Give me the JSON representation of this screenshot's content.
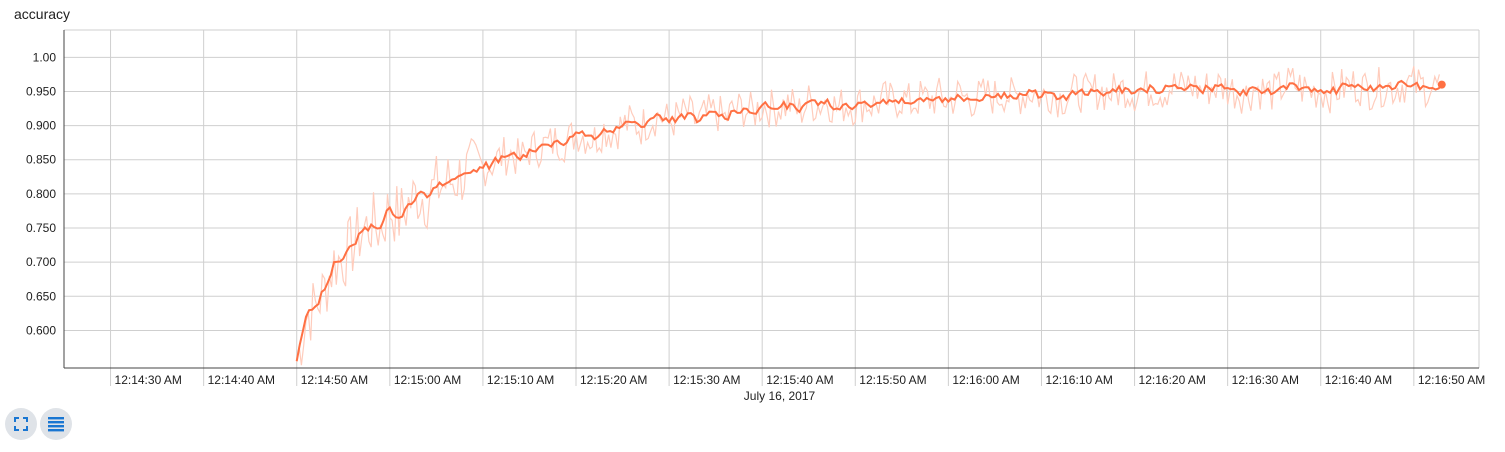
{
  "title": "accuracy",
  "controls": {
    "expand_icon": "fullscreen-icon",
    "data_icon": "data-list-icon"
  },
  "colors": {
    "smoothed_line": "#ff7043",
    "raw_line": "#ffccbc",
    "grid": "#cfcfcf",
    "axis": "#444444",
    "button_bg": "#dfe3e8",
    "icon": "#1976d2"
  },
  "chart_data": {
    "type": "line",
    "title": "accuracy",
    "xlabel": "July 16, 2017",
    "ylabel": "",
    "x_axis": "time",
    "x_range": [
      "12:14:25 AM",
      "12:16:57 AM"
    ],
    "ylim": [
      0.545,
      1.04
    ],
    "y_ticks": [
      "0.600",
      "0.650",
      "0.700",
      "0.750",
      "0.800",
      "0.850",
      "0.900",
      "0.950",
      "1.00"
    ],
    "y_tick_values": [
      0.6,
      0.65,
      0.7,
      0.75,
      0.8,
      0.85,
      0.9,
      0.95,
      1.0
    ],
    "x_ticks": [
      "12:14:30 AM",
      "12:14:40 AM",
      "12:14:50 AM",
      "12:15:00 AM",
      "12:15:10 AM",
      "12:15:20 AM",
      "12:15:30 AM",
      "12:15:40 AM",
      "12:15:50 AM",
      "12:16:00 AM",
      "12:16:10 AM",
      "12:16:20 AM",
      "12:16:30 AM",
      "12:16:40 AM",
      "12:16:50 AM"
    ],
    "grid": true,
    "series": [
      {
        "role": "smoothed",
        "x": [
          "12:14:50 AM",
          "12:14:51 AM",
          "12:14:52 AM",
          "12:14:53 AM",
          "12:14:54 AM",
          "12:14:55 AM",
          "12:14:56 AM",
          "12:14:57 AM",
          "12:14:58 AM",
          "12:14:59 AM",
          "12:15:00 AM",
          "12:15:01 AM",
          "12:15:02 AM",
          "12:15:03 AM",
          "12:15:04 AM",
          "12:15:05 AM",
          "12:15:06 AM",
          "12:15:07 AM",
          "12:15:08 AM",
          "12:15:09 AM",
          "12:15:10 AM",
          "12:15:11 AM",
          "12:15:12 AM",
          "12:15:13 AM",
          "12:15:14 AM",
          "12:15:15 AM",
          "12:15:16 AM",
          "12:15:17 AM",
          "12:15:18 AM",
          "12:15:19 AM",
          "12:15:20 AM",
          "12:15:21 AM",
          "12:15:22 AM",
          "12:15:23 AM",
          "12:15:24 AM",
          "12:15:25 AM",
          "12:15:26 AM",
          "12:15:27 AM",
          "12:15:28 AM",
          "12:15:29 AM",
          "12:15:30 AM",
          "12:15:31 AM",
          "12:15:32 AM",
          "12:15:33 AM",
          "12:15:34 AM",
          "12:15:35 AM",
          "12:15:36 AM",
          "12:15:37 AM",
          "12:15:38 AM",
          "12:15:39 AM",
          "12:15:40 AM",
          "12:15:41 AM",
          "12:15:42 AM",
          "12:15:43 AM",
          "12:15:44 AM",
          "12:15:45 AM",
          "12:15:46 AM",
          "12:15:47 AM",
          "12:15:48 AM",
          "12:15:49 AM",
          "12:15:50 AM",
          "12:15:51 AM",
          "12:15:52 AM",
          "12:15:53 AM",
          "12:15:54 AM",
          "12:15:55 AM",
          "12:15:56 AM",
          "12:15:57 AM",
          "12:15:58 AM",
          "12:15:59 AM",
          "12:16:00 AM",
          "12:16:01 AM",
          "12:16:02 AM",
          "12:16:03 AM",
          "12:16:04 AM",
          "12:16:05 AM",
          "12:16:06 AM",
          "12:16:07 AM",
          "12:16:08 AM",
          "12:16:09 AM",
          "12:16:10 AM",
          "12:16:11 AM",
          "12:16:12 AM",
          "12:16:13 AM",
          "12:16:14 AM",
          "12:16:15 AM",
          "12:16:16 AM",
          "12:16:17 AM",
          "12:16:18 AM",
          "12:16:19 AM",
          "12:16:20 AM",
          "12:16:21 AM",
          "12:16:22 AM",
          "12:16:23 AM",
          "12:16:24 AM",
          "12:16:25 AM",
          "12:16:26 AM",
          "12:16:27 AM",
          "12:16:28 AM",
          "12:16:29 AM",
          "12:16:30 AM",
          "12:16:31 AM",
          "12:16:32 AM",
          "12:16:33 AM",
          "12:16:34 AM",
          "12:16:35 AM",
          "12:16:36 AM",
          "12:16:37 AM",
          "12:16:38 AM",
          "12:16:39 AM",
          "12:16:40 AM",
          "12:16:41 AM",
          "12:16:42 AM",
          "12:16:43 AM",
          "12:16:44 AM",
          "12:16:45 AM",
          "12:16:46 AM",
          "12:16:47 AM",
          "12:16:48 AM",
          "12:16:49 AM",
          "12:16:50 AM",
          "12:16:51 AM",
          "12:16:52 AM",
          "12:16:53 AM"
        ],
        "y": [
          0.555,
          0.62,
          0.635,
          0.66,
          0.7,
          0.705,
          0.725,
          0.745,
          0.755,
          0.75,
          0.78,
          0.765,
          0.785,
          0.8,
          0.795,
          0.81,
          0.815,
          0.822,
          0.83,
          0.835,
          0.838,
          0.845,
          0.855,
          0.858,
          0.85,
          0.865,
          0.868,
          0.872,
          0.878,
          0.875,
          0.89,
          0.885,
          0.88,
          0.895,
          0.89,
          0.9,
          0.905,
          0.898,
          0.91,
          0.915,
          0.905,
          0.912,
          0.918,
          0.905,
          0.915,
          0.92,
          0.91,
          0.922,
          0.925,
          0.918,
          0.93,
          0.925,
          0.928,
          0.932,
          0.92,
          0.935,
          0.93,
          0.938,
          0.925,
          0.932,
          0.928,
          0.935,
          0.93,
          0.938,
          0.935,
          0.94,
          0.932,
          0.94,
          0.938,
          0.942,
          0.935,
          0.945,
          0.94,
          0.938,
          0.945,
          0.942,
          0.948,
          0.94,
          0.945,
          0.95,
          0.942,
          0.948,
          0.94,
          0.945,
          0.95,
          0.945,
          0.952,
          0.948,
          0.95,
          0.955,
          0.948,
          0.952,
          0.955,
          0.95,
          0.958,
          0.955,
          0.96,
          0.952,
          0.955,
          0.958,
          0.955,
          0.95,
          0.945,
          0.955,
          0.95,
          0.948,
          0.958,
          0.962,
          0.955,
          0.95,
          0.952,
          0.948,
          0.955,
          0.958,
          0.96,
          0.952,
          0.955,
          0.958,
          0.955,
          0.962,
          0.96,
          0.958,
          0.955,
          0.96
        ]
      }
    ]
  },
  "date_label": "July 16, 2017"
}
